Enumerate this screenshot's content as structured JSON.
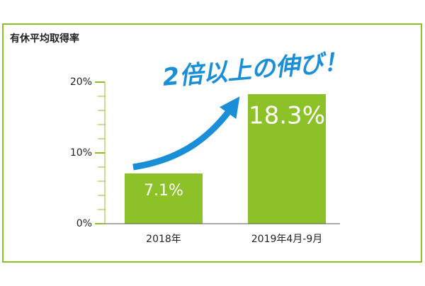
{
  "chart_data": {
    "type": "bar",
    "title": "有休平均取得率",
    "annotation": "2倍以上の伸び！",
    "categories": [
      "2018年",
      "2019年4月-9月"
    ],
    "values": [
      7.1,
      18.3
    ],
    "value_labels": [
      "7.1%",
      "18.3%"
    ],
    "color": "#8cc228",
    "annotation_color": "#1a8fd8",
    "ylim": [
      0,
      20
    ],
    "yticks": [
      {
        "value": 0,
        "label": "0%"
      },
      {
        "value": 10,
        "label": "10%"
      },
      {
        "value": 20,
        "label": "20%"
      }
    ],
    "minor_yticks": [
      2,
      4,
      6,
      8,
      12,
      14,
      16,
      18
    ]
  }
}
